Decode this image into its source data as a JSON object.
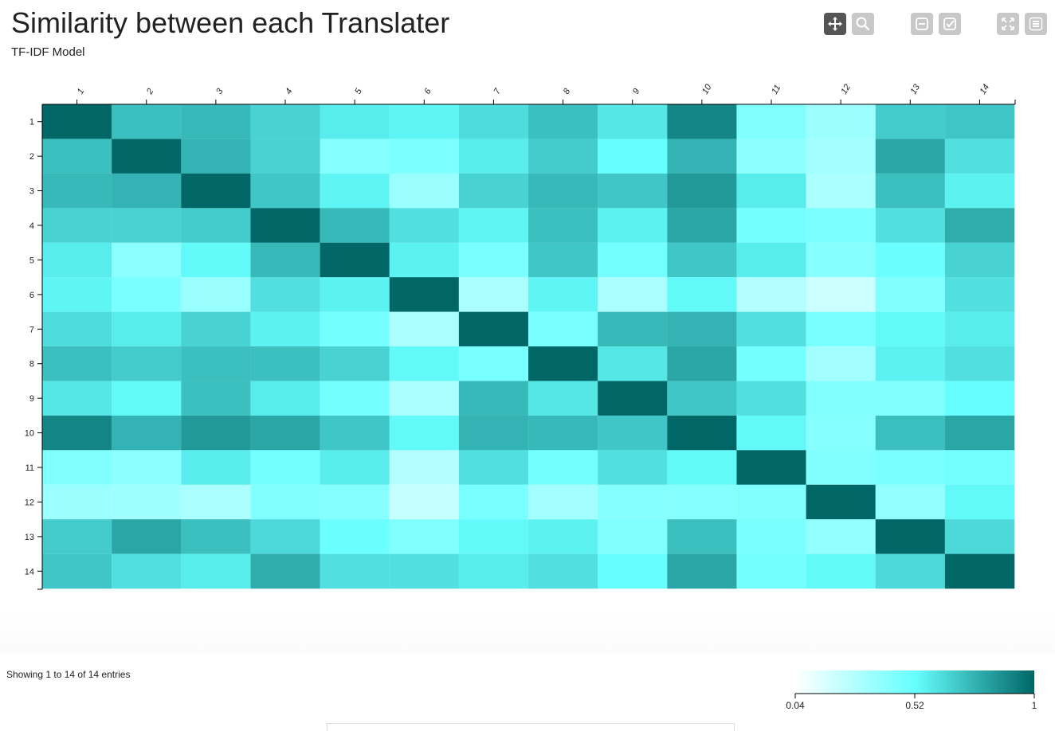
{
  "header": {
    "title": "Similarity between each Translater",
    "subtitle": "TF-IDF Model"
  },
  "toolbar": [
    {
      "name": "pan-icon",
      "active": true
    },
    {
      "name": "zoom-icon",
      "active": false
    },
    {
      "name": "select-none-icon",
      "active": false
    },
    {
      "name": "select-all-icon",
      "active": false
    },
    {
      "name": "fullscreen-icon",
      "active": false
    },
    {
      "name": "menu-icon",
      "active": false
    }
  ],
  "chart_data": {
    "type": "heatmap",
    "title": "Similarity between each Translater",
    "subtitle": "TF-IDF Model",
    "x": [
      "1",
      "2",
      "3",
      "4",
      "5",
      "6",
      "7",
      "8",
      "9",
      "10",
      "11",
      "12",
      "13",
      "14"
    ],
    "y": [
      "1",
      "2",
      "3",
      "4",
      "5",
      "6",
      "7",
      "8",
      "9",
      "10",
      "11",
      "12",
      "13",
      "14"
    ],
    "values": [
      [
        1.0,
        0.72,
        0.74,
        0.66,
        0.58,
        0.55,
        0.63,
        0.72,
        0.6,
        0.9,
        0.44,
        0.35,
        0.68,
        0.7
      ],
      [
        0.72,
        1.0,
        0.76,
        0.66,
        0.42,
        0.45,
        0.58,
        0.68,
        0.52,
        0.76,
        0.4,
        0.33,
        0.8,
        0.62
      ],
      [
        0.74,
        0.76,
        1.0,
        0.7,
        0.55,
        0.36,
        0.66,
        0.74,
        0.7,
        0.84,
        0.58,
        0.3,
        0.72,
        0.56
      ],
      [
        0.66,
        0.66,
        0.68,
        1.0,
        0.74,
        0.62,
        0.55,
        0.72,
        0.56,
        0.8,
        0.48,
        0.45,
        0.62,
        0.78
      ],
      [
        0.58,
        0.4,
        0.54,
        0.74,
        1.0,
        0.56,
        0.46,
        0.7,
        0.48,
        0.7,
        0.58,
        0.42,
        0.5,
        0.66
      ],
      [
        0.55,
        0.46,
        0.36,
        0.62,
        0.56,
        1.0,
        0.3,
        0.55,
        0.3,
        0.54,
        0.28,
        0.2,
        0.44,
        0.62
      ],
      [
        0.63,
        0.58,
        0.66,
        0.56,
        0.48,
        0.3,
        1.0,
        0.46,
        0.74,
        0.76,
        0.62,
        0.46,
        0.54,
        0.58
      ],
      [
        0.72,
        0.68,
        0.72,
        0.72,
        0.66,
        0.54,
        0.46,
        1.0,
        0.6,
        0.8,
        0.48,
        0.33,
        0.56,
        0.62
      ],
      [
        0.6,
        0.54,
        0.72,
        0.58,
        0.48,
        0.3,
        0.74,
        0.6,
        1.0,
        0.7,
        0.62,
        0.44,
        0.44,
        0.52
      ],
      [
        0.9,
        0.76,
        0.84,
        0.8,
        0.7,
        0.54,
        0.76,
        0.74,
        0.7,
        1.0,
        0.54,
        0.42,
        0.72,
        0.8
      ],
      [
        0.44,
        0.4,
        0.58,
        0.48,
        0.58,
        0.28,
        0.62,
        0.48,
        0.62,
        0.54,
        1.0,
        0.44,
        0.46,
        0.48
      ],
      [
        0.35,
        0.34,
        0.3,
        0.44,
        0.42,
        0.22,
        0.46,
        0.33,
        0.42,
        0.42,
        0.44,
        1.0,
        0.38,
        0.54
      ],
      [
        0.68,
        0.8,
        0.72,
        0.64,
        0.5,
        0.44,
        0.54,
        0.56,
        0.44,
        0.72,
        0.46,
        0.38,
        1.0,
        0.64
      ],
      [
        0.7,
        0.62,
        0.58,
        0.78,
        0.62,
        0.62,
        0.58,
        0.62,
        0.52,
        0.8,
        0.48,
        0.54,
        0.64,
        1.0
      ]
    ],
    "color_min": 0.04,
    "color_max": 1,
    "color_ticks": [
      "0.04",
      "0.52",
      "1"
    ],
    "colors": [
      "#ffffff",
      "#66ffff",
      "#006666"
    ],
    "grid": false,
    "legend": "bottom-right"
  },
  "table_info": "Showing 1 to 14 of 14 entries"
}
